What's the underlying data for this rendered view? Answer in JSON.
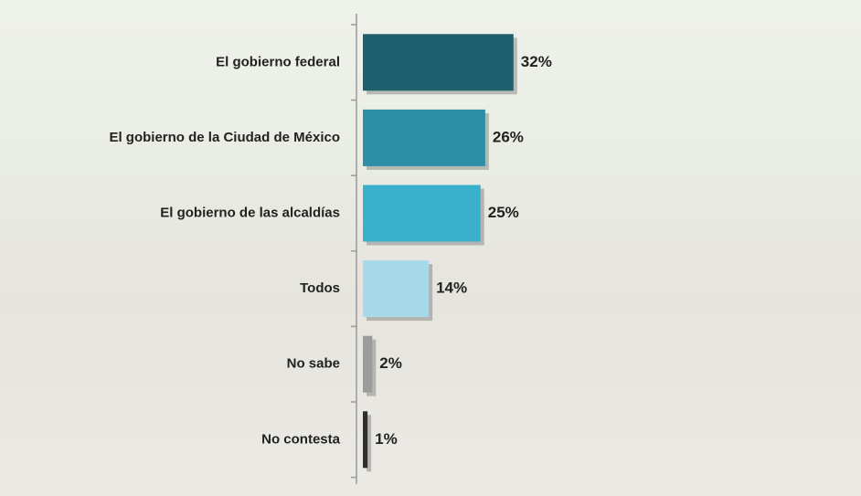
{
  "chart_data": {
    "type": "bar",
    "orientation": "horizontal",
    "categories": [
      "El gobierno federal",
      "El gobierno de la Ciudad de México",
      "El gobierno de las alcaldías",
      "Todos",
      "No sabe",
      "No contesta"
    ],
    "values": [
      32,
      26,
      25,
      14,
      2,
      1
    ],
    "value_labels": [
      "32%",
      "26%",
      "25%",
      "14%",
      "2%",
      "1%"
    ],
    "colors": [
      "#1f5f6e",
      "#2d8ea8",
      "#3bb0cc",
      "#a8d9ea",
      "#9c9c9c",
      "#2e2e2e"
    ]
  }
}
